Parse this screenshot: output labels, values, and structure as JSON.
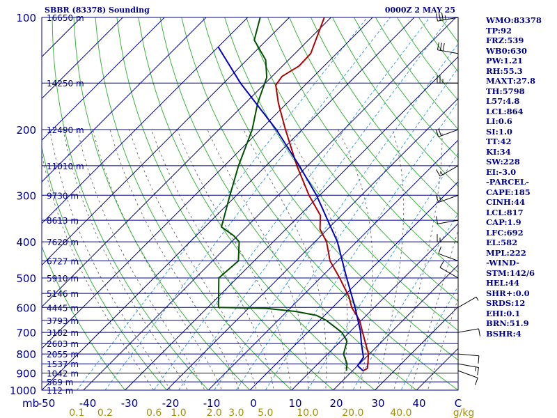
{
  "title": "SBBR (83378) Sounding",
  "timestamp": "0000Z  2 MAY 25",
  "colors": {
    "grid": "#00008b",
    "isotherm": "#00008b",
    "dry_adiabat": "#3cb43c",
    "moist_adiabat": "#777777",
    "mixing_ratio": "#40a0e0",
    "temperature": "#b00000",
    "dewpoint": "#005000",
    "parcel": "#0000c0",
    "mixing_label": "#a89000"
  },
  "chart_data": {
    "type": "line",
    "chart_kind": "skew-T log-P sounding",
    "title": "SBBR (83378) Sounding",
    "y_axis_unit": "mb",
    "x_axis_unit": "C",
    "y_range": [
      1000,
      100
    ],
    "x_range": [
      -50,
      50
    ],
    "y_scale": "log",
    "grid": true,
    "pressure_ticks": [
      100,
      200,
      300,
      400,
      500,
      600,
      700,
      800,
      900,
      1000
    ],
    "temperature_ticks": [
      "-50",
      "-40",
      "-30",
      "-20",
      "-10",
      "0",
      "10",
      "20",
      "30",
      "40",
      "C"
    ],
    "mixing_ratio_label": "g/kg",
    "mixing_ratio_ticks": [
      "0.1",
      "0.2",
      "0.6",
      "1.0",
      "2.0",
      "3.0",
      "5.0",
      "10.0",
      "20.0",
      "40.0"
    ],
    "height_labels": [
      {
        "p": 100,
        "h": "16650 m"
      },
      {
        "p": 150,
        "h": "14250 m"
      },
      {
        "p": 200,
        "h": "12490 m"
      },
      {
        "p": 250,
        "h": "11010 m"
      },
      {
        "p": 300,
        "h": "9730 m"
      },
      {
        "p": 350,
        "h": "8613 m"
      },
      {
        "p": 400,
        "h": "7620 m"
      },
      {
        "p": 450,
        "h": "6727 m"
      },
      {
        "p": 500,
        "h": "5910 m"
      },
      {
        "p": 550,
        "h": "5146 m"
      },
      {
        "p": 600,
        "h": "4445 m"
      },
      {
        "p": 650,
        "h": "3793 m"
      },
      {
        "p": 700,
        "h": "3182 m"
      },
      {
        "p": 750,
        "h": "2603 m"
      },
      {
        "p": 800,
        "h": "2055 m"
      },
      {
        "p": 850,
        "h": "1537 m"
      },
      {
        "p": 900,
        "h": "1042 m"
      },
      {
        "p": 950,
        "h": "569 m"
      },
      {
        "p": 1000,
        "h": "112 m"
      }
    ],
    "series": [
      {
        "key": "temperature",
        "points": [
          [
            887,
            22.5
          ],
          [
            875,
            23.0
          ],
          [
            850,
            22.0
          ],
          [
            800,
            19.8
          ],
          [
            750,
            16.6
          ],
          [
            700,
            13.2
          ],
          [
            650,
            9.6
          ],
          [
            600,
            4.6
          ],
          [
            560,
            1.2
          ],
          [
            500,
            -5.4
          ],
          [
            450,
            -11.8
          ],
          [
            400,
            -17.2
          ],
          [
            370,
            -21.8
          ],
          [
            340,
            -25.0
          ],
          [
            300,
            -32.6
          ],
          [
            250,
            -42.6
          ],
          [
            200,
            -54.0
          ],
          [
            170,
            -62.0
          ],
          [
            152,
            -67.0
          ],
          [
            144,
            -67.6
          ],
          [
            135,
            -66.0
          ],
          [
            125,
            -66.2
          ],
          [
            100,
            -71.6
          ]
        ]
      },
      {
        "key": "dewpoint",
        "points": [
          [
            887,
            18.5
          ],
          [
            850,
            17.0
          ],
          [
            800,
            13.8
          ],
          [
            740,
            11.6
          ],
          [
            720,
            10.0
          ],
          [
            700,
            8.2
          ],
          [
            650,
            1.6
          ],
          [
            630,
            -2.0
          ],
          [
            615,
            -8.0
          ],
          [
            603,
            -16.0
          ],
          [
            600,
            -27.4
          ],
          [
            500,
            -34.4
          ],
          [
            450,
            -33.8
          ],
          [
            400,
            -38.2
          ],
          [
            385,
            -41.0
          ],
          [
            365,
            -46.0
          ],
          [
            300,
            -51.6
          ],
          [
            250,
            -56.6
          ],
          [
            200,
            -62.0
          ],
          [
            170,
            -67.0
          ],
          [
            145,
            -71.0
          ],
          [
            130,
            -75.5
          ],
          [
            115,
            -83.0
          ],
          [
            100,
            -87.0
          ]
        ]
      },
      {
        "key": "parcel",
        "points": [
          [
            887,
            22.5
          ],
          [
            860,
            20.0
          ],
          [
            817,
            19.4
          ],
          [
            750,
            15.6
          ],
          [
            692,
            12.2
          ],
          [
            600,
            5.4
          ],
          [
            500,
            -3.7
          ],
          [
            400,
            -14.6
          ],
          [
            300,
            -30.8
          ],
          [
            250,
            -42.0
          ],
          [
            200,
            -56.2
          ],
          [
            150,
            -76.0
          ],
          [
            120,
            -90.0
          ]
        ]
      }
    ],
    "wind_profile": [
      {
        "p": 887,
        "dir": 110,
        "spd": 10
      },
      {
        "p": 850,
        "dir": 100,
        "spd": 15
      },
      {
        "p": 800,
        "dir": 95,
        "spd": 10
      },
      {
        "p": 700,
        "dir": 80,
        "spd": 10
      },
      {
        "p": 600,
        "dir": 60,
        "spd": 5
      },
      {
        "p": 500,
        "dir": 300,
        "spd": 10
      },
      {
        "p": 450,
        "dir": 290,
        "spd": 10
      },
      {
        "p": 400,
        "dir": 270,
        "spd": 15
      },
      {
        "p": 350,
        "dir": 260,
        "spd": 10
      },
      {
        "p": 300,
        "dir": 250,
        "spd": 15
      },
      {
        "p": 250,
        "dir": 240,
        "spd": 15
      },
      {
        "p": 200,
        "dir": 250,
        "spd": 20
      },
      {
        "p": 150,
        "dir": 270,
        "spd": 25
      },
      {
        "p": 125,
        "dir": 280,
        "spd": 30
      },
      {
        "p": 100,
        "dir": 260,
        "spd": 35
      }
    ]
  },
  "indices": [
    "WMO:83378",
    "TP:92",
    "FRZ:539",
    "WB0:630",
    "PW:1.21",
    "RH:55.3",
    "MAXT:27.8",
    "TH:5798",
    "L57:4.8",
    "LCL:864",
    "LI:0.6",
    "SI:1.0",
    "TT:42",
    "KI:34",
    "SW:228",
    "EI:-3.0",
    "-PARCEL-",
    "CAPE:185",
    "CINH:44",
    "LCL:817",
    "CAP:1.9",
    "LFC:692",
    "EL:582",
    "MPL:222",
    "-WIND-",
    "STM:142/6",
    "HEL:44",
    "SHR+:0.0",
    "SRDS:12",
    "EHI:0.1",
    "BRN:51.9",
    "BSHR:4"
  ]
}
